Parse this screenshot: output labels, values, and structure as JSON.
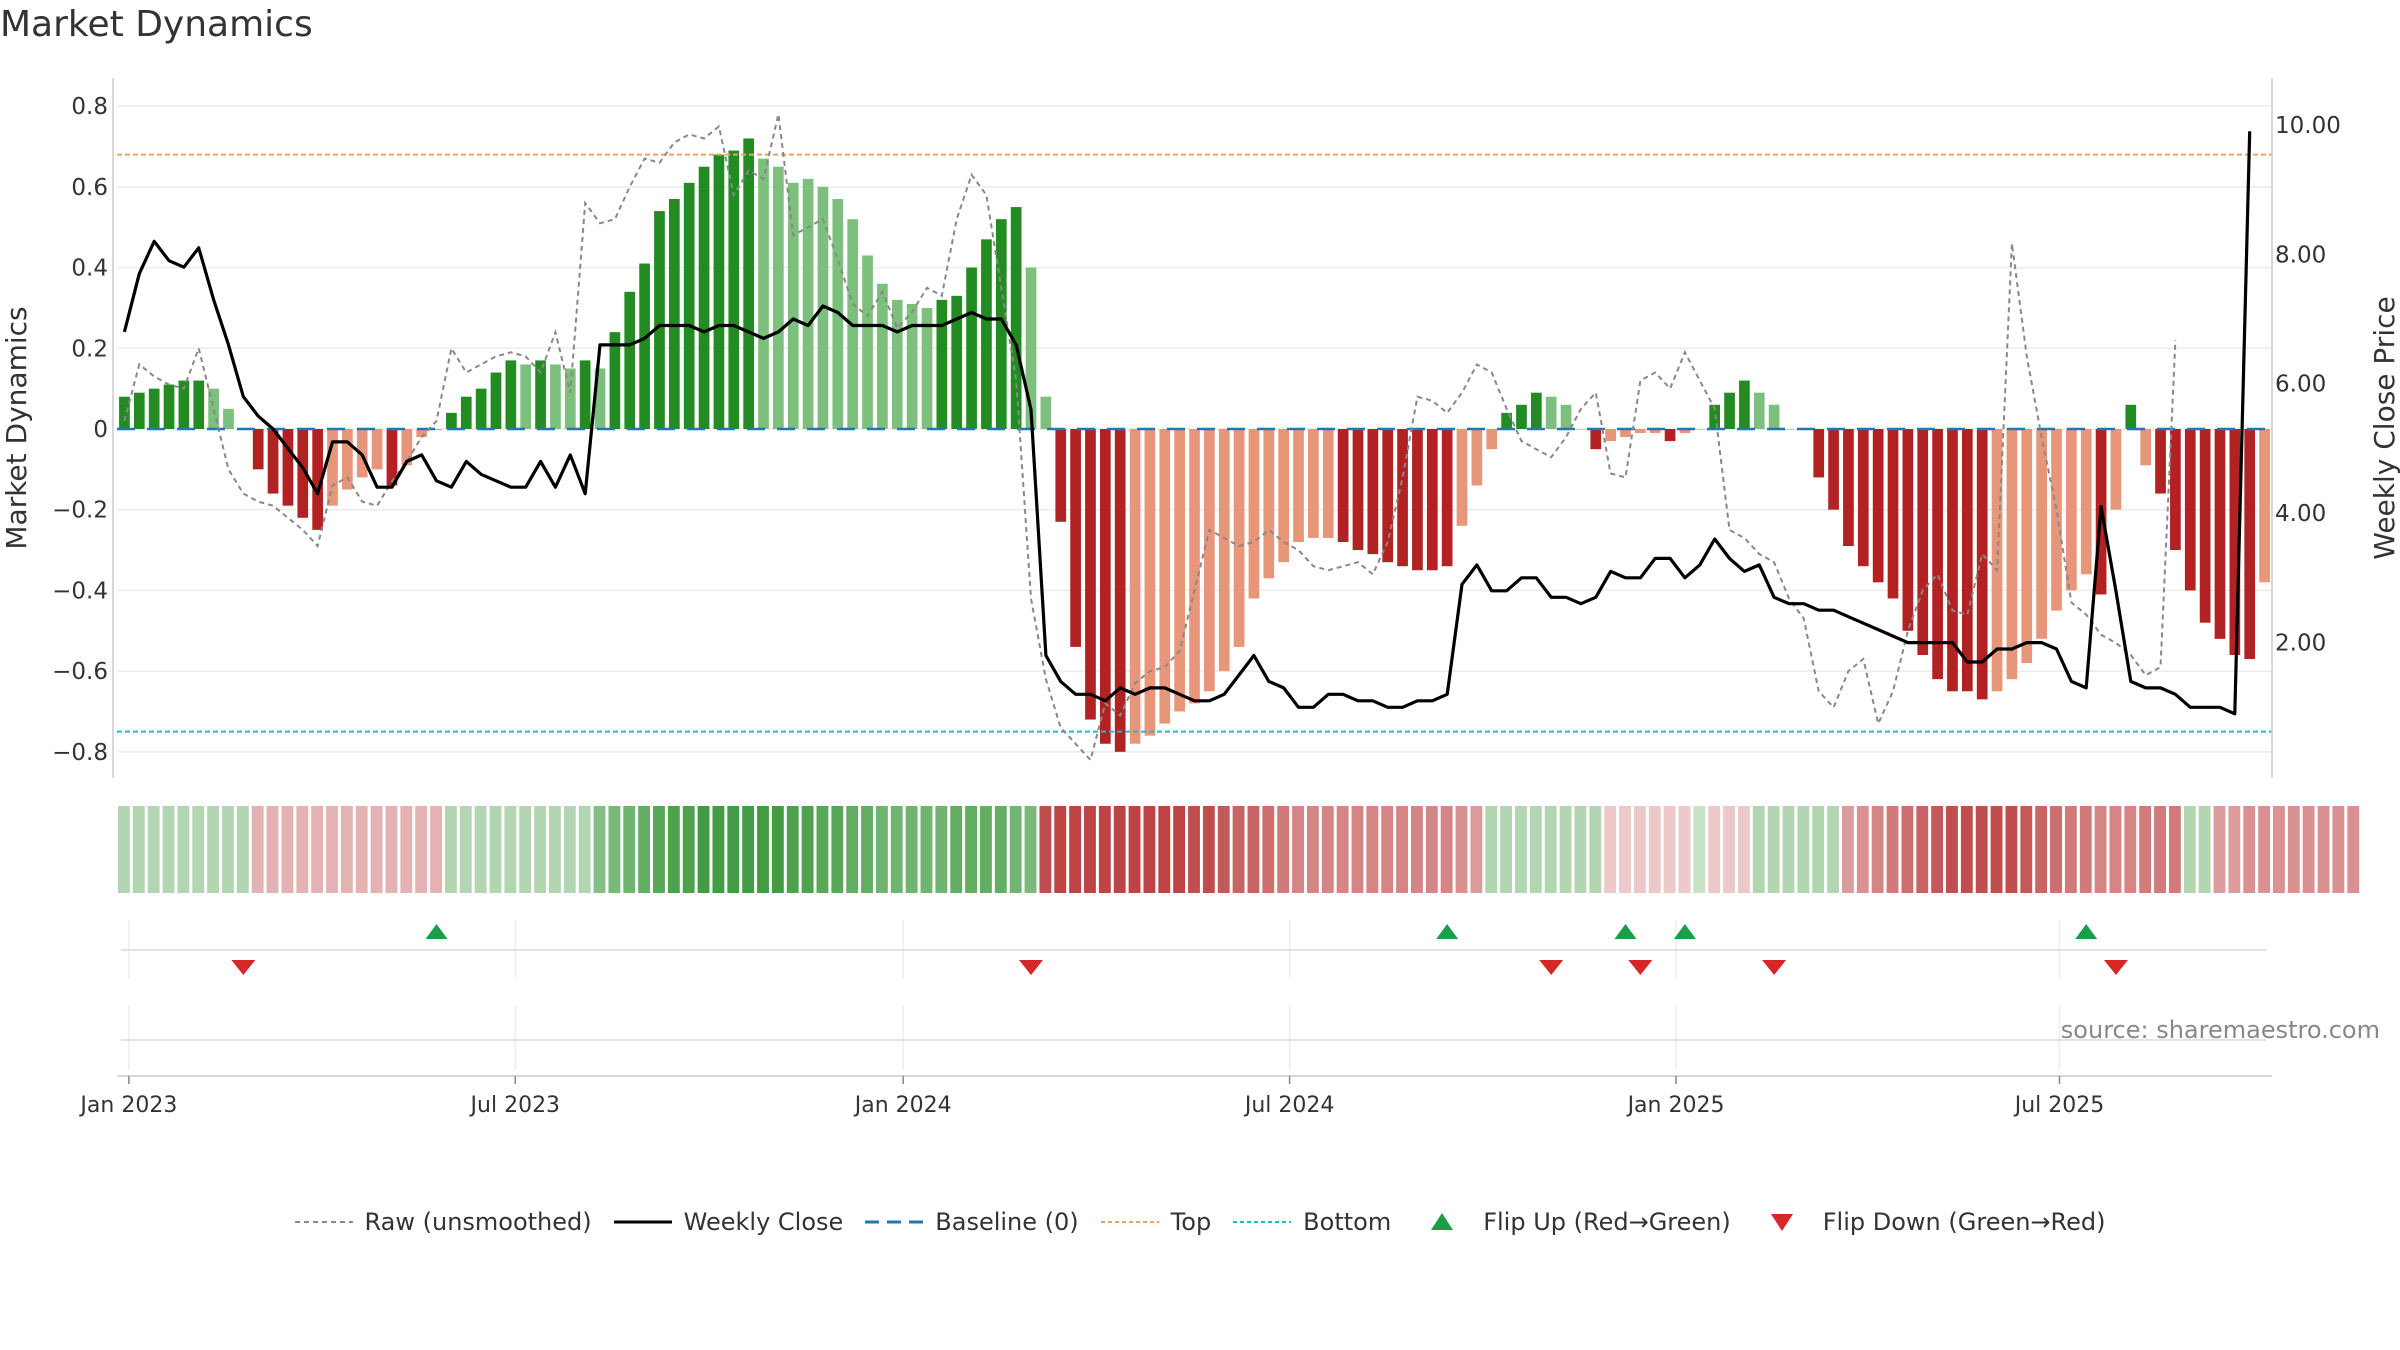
{
  "title": "Market Dynamics",
  "source": "source: sharemaestro.com",
  "colors": {
    "strong_green": "#228b22",
    "light_green": "#7dbf7d",
    "strong_red": "#b22222",
    "light_red": "#e8967a",
    "raw_line": "#888888",
    "close_line": "#000000",
    "baseline": "#1f77b4",
    "top": "#f0a060",
    "bottom": "#17becf",
    "flip_up": "#1a9e4a",
    "flip_down": "#d62728"
  },
  "chart_data": {
    "type": "bar",
    "title": "Market Dynamics",
    "ylabel": "Market Dynamics",
    "y2label": "Weekly Close Price",
    "ylim": [
      -0.85,
      0.85
    ],
    "y2lim": [
      0,
      10.6
    ],
    "yticks": [
      "0.8",
      "0.6",
      "0.4",
      "0.2",
      "0",
      "−0.2",
      "−0.4",
      "−0.6",
      "−0.8"
    ],
    "yticks_values": [
      0.8,
      0.6,
      0.4,
      0.2,
      0,
      -0.2,
      -0.4,
      -0.6,
      -0.8
    ],
    "y2ticks": [
      "10.00",
      "8.00",
      "6.00",
      "4.00",
      "2.00"
    ],
    "y2ticks_values": [
      10,
      8,
      6,
      4,
      2
    ],
    "xticks": [
      "Jan 2023",
      "Jul 2023",
      "Jan 2024",
      "Jul 2024",
      "Jan 2025",
      "Jul 2025"
    ],
    "xticks_weeks": [
      0.3,
      26.3,
      52.4,
      78.4,
      104.4,
      130.2
    ],
    "x_start": "2022-12-26",
    "top_level": 0.68,
    "bottom_level": -0.75,
    "grid": true,
    "legend_position": "bottom-center",
    "market_dynamics": [
      0.08,
      0.09,
      0.1,
      0.11,
      0.12,
      0.12,
      0.1,
      0.05,
      0.0,
      -0.1,
      -0.16,
      -0.19,
      -0.22,
      -0.25,
      -0.19,
      -0.15,
      -0.12,
      -0.1,
      -0.14,
      -0.09,
      -0.02,
      0.0,
      0.04,
      0.08,
      0.1,
      0.14,
      0.17,
      0.16,
      0.17,
      0.16,
      0.15,
      0.17,
      0.15,
      0.24,
      0.34,
      0.41,
      0.54,
      0.57,
      0.61,
      0.65,
      0.68,
      0.69,
      0.72,
      0.67,
      0.65,
      0.61,
      0.62,
      0.6,
      0.57,
      0.52,
      0.43,
      0.36,
      0.32,
      0.31,
      0.3,
      0.32,
      0.33,
      0.4,
      0.47,
      0.52,
      0.55,
      0.4,
      0.08,
      -0.23,
      -0.54,
      -0.72,
      -0.78,
      -0.8,
      -0.78,
      -0.76,
      -0.73,
      -0.7,
      -0.68,
      -0.65,
      -0.6,
      -0.54,
      -0.42,
      -0.37,
      -0.33,
      -0.28,
      -0.27,
      -0.27,
      -0.28,
      -0.3,
      -0.31,
      -0.33,
      -0.34,
      -0.35,
      -0.35,
      -0.34,
      -0.24,
      -0.14,
      -0.05,
      0.04,
      0.06,
      0.09,
      0.08,
      0.06,
      0.0,
      -0.05,
      -0.03,
      -0.02,
      -0.01,
      -0.01,
      -0.03,
      -0.01,
      0.0,
      0.06,
      0.09,
      0.12,
      0.09,
      0.06,
      0.0,
      0.0,
      -0.12,
      -0.2,
      -0.29,
      -0.34,
      -0.38,
      -0.42,
      -0.5,
      -0.56,
      -0.62,
      -0.65,
      -0.65,
      -0.67,
      -0.65,
      -0.62,
      -0.58,
      -0.52,
      -0.45,
      -0.4,
      -0.36,
      -0.41,
      -0.2,
      0.06,
      -0.09,
      -0.16,
      -0.3,
      -0.4,
      -0.48,
      -0.52,
      -0.56,
      -0.57,
      -0.38
    ],
    "bar_shade": [
      "s",
      "s",
      "s",
      "s",
      "s",
      "s",
      "l",
      "l",
      "s",
      "s",
      "s",
      "s",
      "s",
      "s",
      "l",
      "l",
      "l",
      "l",
      "s",
      "l",
      "l",
      "s",
      "s",
      "s",
      "s",
      "s",
      "s",
      "l",
      "s",
      "l",
      "l",
      "s",
      "l",
      "s",
      "s",
      "s",
      "s",
      "s",
      "s",
      "s",
      "s",
      "s",
      "s",
      "l",
      "l",
      "l",
      "l",
      "l",
      "l",
      "l",
      "l",
      "l",
      "l",
      "l",
      "l",
      "s",
      "s",
      "s",
      "s",
      "s",
      "s",
      "l",
      "l",
      "s",
      "s",
      "s",
      "s",
      "s",
      "l",
      "l",
      "l",
      "l",
      "l",
      "l",
      "l",
      "l",
      "l",
      "l",
      "l",
      "l",
      "l",
      "l",
      "s",
      "s",
      "s",
      "s",
      "s",
      "s",
      "s",
      "s",
      "l",
      "l",
      "l",
      "s",
      "s",
      "s",
      "l",
      "l",
      "l",
      "s",
      "l",
      "l",
      "l",
      "l",
      "s",
      "l",
      "l",
      "s",
      "s",
      "s",
      "l",
      "l",
      "l",
      "l",
      "s",
      "s",
      "s",
      "s",
      "s",
      "s",
      "s",
      "s",
      "s",
      "s",
      "s",
      "s",
      "l",
      "l",
      "l",
      "l",
      "l",
      "l",
      "l",
      "s",
      "l",
      "s",
      "l",
      "s",
      "s",
      "s",
      "s",
      "s",
      "s",
      "s",
      "l"
    ],
    "raw_unsmoothed": [
      0.02,
      0.16,
      0.13,
      0.11,
      0.1,
      0.2,
      0.05,
      -0.1,
      -0.16,
      -0.18,
      -0.19,
      -0.22,
      -0.25,
      -0.29,
      -0.14,
      -0.12,
      -0.18,
      -0.19,
      -0.13,
      -0.08,
      -0.02,
      0.02,
      0.2,
      0.14,
      0.16,
      0.18,
      0.19,
      0.18,
      0.14,
      0.24,
      0.09,
      0.56,
      0.51,
      0.52,
      0.6,
      0.67,
      0.66,
      0.71,
      0.73,
      0.72,
      0.75,
      0.58,
      0.64,
      0.62,
      0.78,
      0.48,
      0.5,
      0.52,
      0.42,
      0.31,
      0.28,
      0.34,
      0.25,
      0.29,
      0.35,
      0.33,
      0.52,
      0.63,
      0.58,
      0.35,
      0.12,
      -0.42,
      -0.62,
      -0.74,
      -0.78,
      -0.82,
      -0.68,
      -0.71,
      -0.63,
      -0.6,
      -0.59,
      -0.55,
      -0.4,
      -0.25,
      -0.27,
      -0.29,
      -0.28,
      -0.25,
      -0.28,
      -0.3,
      -0.34,
      -0.35,
      -0.34,
      -0.33,
      -0.36,
      -0.28,
      -0.12,
      0.08,
      0.07,
      0.04,
      0.09,
      0.16,
      0.14,
      0.05,
      -0.03,
      -0.05,
      -0.07,
      -0.02,
      0.05,
      0.09,
      -0.11,
      -0.12,
      0.12,
      0.14,
      0.1,
      0.19,
      0.12,
      0.05,
      -0.25,
      -0.27,
      -0.31,
      -0.33,
      -0.42,
      -0.47,
      -0.65,
      -0.69,
      -0.6,
      -0.57,
      -0.73,
      -0.65,
      -0.5,
      -0.4,
      -0.36,
      -0.45,
      -0.46,
      -0.31,
      -0.35,
      0.46,
      0.18,
      -0.02,
      -0.2,
      -0.43,
      -0.46,
      -0.51,
      -0.53,
      -0.56,
      -0.61,
      -0.59,
      0.22
    ],
    "weekly_close": [
      6.8,
      7.7,
      8.2,
      7.9,
      7.8,
      8.1,
      7.3,
      6.6,
      5.8,
      5.5,
      5.3,
      5.0,
      4.7,
      4.3,
      5.1,
      5.1,
      4.9,
      4.4,
      4.4,
      4.8,
      4.9,
      4.5,
      4.4,
      4.8,
      4.6,
      4.5,
      4.4,
      4.4,
      4.8,
      4.4,
      4.9,
      4.3,
      6.6,
      6.6,
      6.6,
      6.7,
      6.9,
      6.9,
      6.9,
      6.8,
      6.9,
      6.9,
      6.8,
      6.7,
      6.8,
      7.0,
      6.9,
      7.2,
      7.1,
      6.9,
      6.9,
      6.9,
      6.8,
      6.9,
      6.9,
      6.9,
      7.0,
      7.1,
      7.0,
      7.0,
      6.6,
      5.6,
      1.8,
      1.4,
      1.2,
      1.2,
      1.1,
      1.3,
      1.2,
      1.3,
      1.3,
      1.2,
      1.1,
      1.1,
      1.2,
      1.5,
      1.8,
      1.4,
      1.3,
      1.0,
      1.0,
      1.2,
      1.2,
      1.1,
      1.1,
      1.0,
      1.0,
      1.1,
      1.1,
      1.2,
      2.9,
      3.2,
      2.8,
      2.8,
      3.0,
      3.0,
      2.7,
      2.7,
      2.6,
      2.7,
      3.1,
      3.0,
      3.0,
      3.3,
      3.3,
      3.0,
      3.2,
      3.6,
      3.3,
      3.1,
      3.2,
      2.7,
      2.6,
      2.6,
      2.5,
      2.5,
      2.4,
      2.3,
      2.2,
      2.1,
      2.0,
      2.0,
      2.0,
      2.0,
      1.7,
      1.7,
      1.9,
      1.9,
      2.0,
      2.0,
      1.9,
      1.4,
      1.3,
      4.1,
      2.8,
      1.4,
      1.3,
      1.3,
      1.2,
      1.0,
      1.0,
      1.0,
      0.9,
      9.9
    ],
    "regime_strip": [
      0.35,
      0.35,
      0.35,
      0.35,
      0.35,
      0.35,
      0.35,
      0.35,
      0.35,
      -0.35,
      -0.35,
      -0.35,
      -0.35,
      -0.35,
      -0.35,
      -0.35,
      -0.35,
      -0.35,
      -0.35,
      -0.35,
      -0.35,
      -0.35,
      0.35,
      0.35,
      0.35,
      0.35,
      0.35,
      0.35,
      0.35,
      0.35,
      0.35,
      0.35,
      0.55,
      0.6,
      0.65,
      0.7,
      0.75,
      0.8,
      0.8,
      0.85,
      0.85,
      0.85,
      0.85,
      0.85,
      0.85,
      0.8,
      0.8,
      0.75,
      0.75,
      0.7,
      0.7,
      0.65,
      0.65,
      0.65,
      0.65,
      0.65,
      0.7,
      0.7,
      0.7,
      0.7,
      0.65,
      0.6,
      -0.8,
      -0.85,
      -0.85,
      -0.85,
      -0.85,
      -0.85,
      -0.85,
      -0.85,
      -0.85,
      -0.85,
      -0.8,
      -0.8,
      -0.75,
      -0.7,
      -0.7,
      -0.65,
      -0.6,
      -0.55,
      -0.55,
      -0.55,
      -0.55,
      -0.55,
      -0.55,
      -0.55,
      -0.55,
      -0.55,
      -0.55,
      -0.55,
      -0.5,
      -0.45,
      0.35,
      0.35,
      0.35,
      0.35,
      0.35,
      0.35,
      0.35,
      0.35,
      -0.25,
      -0.25,
      -0.25,
      -0.25,
      -0.25,
      -0.25,
      0.25,
      -0.25,
      -0.25,
      -0.25,
      0.35,
      0.35,
      0.35,
      0.35,
      0.35,
      0.35,
      -0.45,
      -0.5,
      -0.55,
      -0.6,
      -0.65,
      -0.7,
      -0.75,
      -0.8,
      -0.8,
      -0.8,
      -0.8,
      -0.8,
      -0.75,
      -0.7,
      -0.65,
      -0.6,
      -0.6,
      -0.55,
      -0.55,
      -0.55,
      -0.6,
      -0.6,
      -0.6,
      0.35,
      0.35,
      -0.45,
      -0.45,
      -0.5,
      -0.5,
      -0.5,
      -0.5,
      -0.5,
      -0.5,
      -0.5,
      -0.5
    ],
    "flip_up_weeks": [
      21,
      89,
      101,
      105,
      132
    ],
    "flip_down_weeks": [
      8,
      61,
      96,
      102,
      111,
      134
    ],
    "legend": [
      "Raw (unsmoothed)",
      "Weekly Close",
      "Baseline (0)",
      "Top",
      "Bottom",
      "Flip Up (Red→Green)",
      "Flip Down (Green→Red)"
    ]
  }
}
